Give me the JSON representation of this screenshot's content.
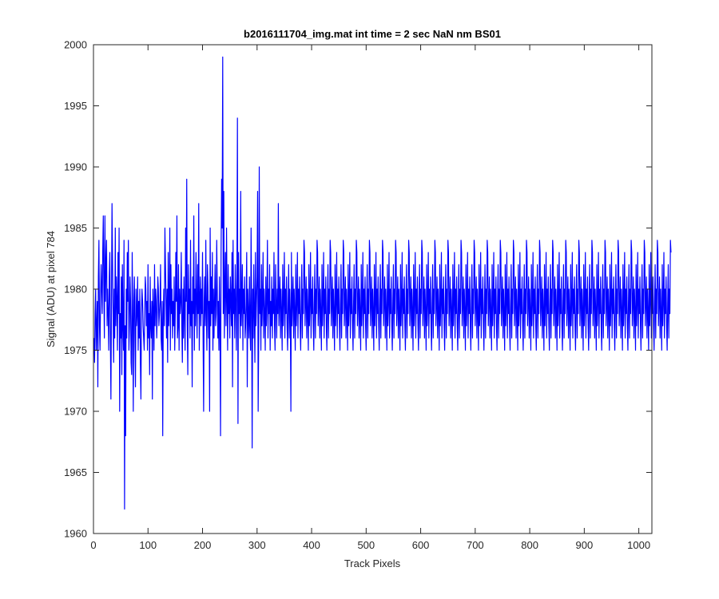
{
  "chart_data": {
    "type": "line",
    "title": "b2016111704_img.mat int time = 2 sec  NaN nm BS01",
    "xlabel": "Track Pixels",
    "ylabel": "Signal (ADU) at pixel 784",
    "xlim": [
      0,
      1024
    ],
    "ylim": [
      1960,
      2000
    ],
    "xticks": [
      "0",
      "100",
      "200",
      "300",
      "400",
      "500",
      "600",
      "700",
      "800",
      "900",
      "1000"
    ],
    "yticks": [
      "1960",
      "1965",
      "1970",
      "1975",
      "1980",
      "1985",
      "1990",
      "1995",
      "2000"
    ],
    "grid": false,
    "series": [
      {
        "color": "#0000ff",
        "x_start": 1,
        "x_step": 1,
        "y": [
          1976,
          1974,
          1978,
          1980,
          1975,
          1977,
          1979,
          1972,
          1981,
          1984,
          1977,
          1975,
          1979,
          1982,
          1980,
          1978,
          1983,
          1986,
          1980,
          1976,
          1986,
          1979,
          1982,
          1984,
          1977,
          1980,
          1978,
          1975,
          1981,
          1983,
          1976,
          1971,
          1979,
          1987,
          1982,
          1978,
          1974,
          1980,
          1976,
          1985,
          1977,
          1981,
          1979,
          1975,
          1983,
          1978,
          1985,
          1970,
          1978,
          1976,
          1981,
          1973,
          1982,
          1977,
          1975,
          1984,
          1962,
          1977,
          1968,
          1980,
          1976,
          1983,
          1979,
          1984,
          1975,
          1977,
          1981,
          1979,
          1974,
          1973,
          1983,
          1978,
          1970,
          1979,
          1981,
          1976,
          1972,
          1980,
          1977,
          1978,
          1981,
          1975,
          1979,
          1976,
          1980,
          1974,
          1971,
          1978,
          1980,
          1979,
          1977,
          1976,
          1975,
          1978,
          1981,
          1980,
          1977,
          1979,
          1975,
          1982,
          1976,
          1978,
          1973,
          1981,
          1977,
          1976,
          1979,
          1971,
          1980,
          1978,
          1975,
          1982,
          1977,
          1980,
          1979,
          1976,
          1978,
          1981,
          1980,
          1977,
          1978,
          1979,
          1982,
          1976,
          1975,
          1979,
          1968,
          1978,
          1980,
          1977,
          1985,
          1982,
          1979,
          1976,
          1980,
          1974,
          1983,
          1977,
          1979,
          1985,
          1975,
          1982,
          1978,
          1980,
          1976,
          1979,
          1977,
          1981,
          1975,
          1978,
          1983,
          1979,
          1986,
          1976,
          1977,
          1982,
          1975,
          1980,
          1978,
          1979,
          1983,
          1977,
          1974,
          1980,
          1976,
          1981,
          1978,
          1975,
          1985,
          1979,
          1989,
          1977,
          1973,
          1982,
          1978,
          1980,
          1976,
          1984,
          1977,
          1979,
          1972,
          1981,
          1978,
          1986,
          1975,
          1980,
          1977,
          1983,
          1979,
          1976,
          1982,
          1978,
          1987,
          1975,
          1979,
          1981,
          1977,
          1980,
          1978,
          1983,
          1976,
          1970,
          1979,
          1981,
          1977,
          1984,
          1978,
          1975,
          1982,
          1980,
          1976,
          1979,
          1970,
          1985,
          1977,
          1981,
          1978,
          1983,
          1975,
          1980,
          1976,
          1979,
          1982,
          1977,
          1978,
          1984,
          1980,
          1976,
          1979,
          1975,
          1981,
          1977,
          1968,
          1983,
          1989,
          1985,
          1999,
          1978,
          1988,
          1976,
          1980,
          1983,
          1977,
          1985,
          1979,
          1975,
          1982,
          1978,
          1980,
          1976,
          1981,
          1979,
          1977,
          1983,
          1972,
          1984,
          1978,
          1980,
          1976,
          1982,
          1979,
          1975,
          1981,
          1994,
          1969,
          1983,
          1978,
          1980,
          1976,
          1988,
          1977,
          1979,
          1982,
          1975,
          1980,
          1978,
          1981,
          1976,
          1977,
          1979,
          1983,
          1972,
          1980,
          1978,
          1976,
          1981,
          1977,
          1975,
          1985,
          1979,
          1967,
          1980,
          1976,
          1982,
          1978,
          1974,
          1983,
          1977,
          1979,
          1981,
          1988,
          1970,
          1976,
          1990,
          1978,
          1980,
          1975,
          1982,
          1977,
          1979,
          1983,
          1976,
          1980,
          1978,
          1975,
          1981,
          1977,
          1979,
          1984,
          1976,
          1980,
          1978,
          1982,
          1975,
          1979,
          1977,
          1981,
          1976,
          1980,
          1978,
          1983,
          1977,
          1975,
          1982,
          1979,
          1976,
          1980,
          1978,
          1987,
          1977,
          1979,
          1981,
          1976,
          1980,
          1978,
          1975,
          1982,
          1977,
          1979,
          1983,
          1976,
          1980,
          1978,
          1981,
          1977,
          1975,
          1979,
          1982,
          1976,
          1980,
          1978,
          1970,
          1983,
          1977,
          1979,
          1981,
          1976,
          1980,
          1978,
          1975,
          1982,
          1977,
          1979,
          1983,
          1976,
          1980,
          1978,
          1981,
          1977,
          1975,
          1979,
          1982,
          1976,
          1980,
          1978,
          1984,
          1983,
          1977,
          1979,
          1981,
          1976,
          1980,
          1978,
          1975,
          1982,
          1977,
          1979,
          1983,
          1976,
          1980,
          1978,
          1981,
          1977,
          1975,
          1979,
          1982,
          1976,
          1980,
          1978,
          1984,
          1983,
          1977,
          1979,
          1981,
          1976,
          1980,
          1978,
          1975,
          1982,
          1977,
          1979,
          1983,
          1976,
          1980,
          1978,
          1981,
          1977,
          1975,
          1979,
          1982,
          1976,
          1980,
          1978,
          1984,
          1983,
          1977,
          1979,
          1981,
          1976,
          1980,
          1978,
          1975,
          1982,
          1977,
          1979,
          1983,
          1976,
          1980,
          1978,
          1981,
          1977,
          1975,
          1979,
          1982,
          1976,
          1980,
          1978,
          1984,
          1983,
          1977,
          1979,
          1981,
          1976,
          1980,
          1978,
          1975,
          1982,
          1977,
          1979,
          1983,
          1976,
          1980,
          1978,
          1981,
          1977,
          1975,
          1979,
          1982,
          1976,
          1980,
          1978,
          1984,
          1983,
          1977,
          1979,
          1981,
          1976,
          1980,
          1978,
          1975,
          1982,
          1977,
          1979,
          1983,
          1976,
          1980,
          1978,
          1981,
          1977,
          1975,
          1979,
          1982,
          1976,
          1980,
          1978,
          1984,
          1983,
          1977,
          1979,
          1981,
          1976,
          1980,
          1978,
          1975,
          1982,
          1977,
          1979,
          1983,
          1976,
          1980,
          1978,
          1981,
          1977,
          1975,
          1979,
          1982,
          1976,
          1980,
          1978,
          1984,
          1983,
          1977,
          1979,
          1981,
          1976,
          1980,
          1978,
          1975,
          1982,
          1977,
          1979,
          1983,
          1976,
          1980,
          1978,
          1981,
          1977,
          1975,
          1979,
          1982,
          1976,
          1980,
          1978,
          1984,
          1983,
          1977,
          1979,
          1981,
          1976,
          1980,
          1978,
          1975,
          1982,
          1977,
          1979,
          1983,
          1976,
          1980,
          1978,
          1981,
          1977,
          1975,
          1979,
          1982,
          1976,
          1980,
          1978,
          1984,
          1983,
          1977,
          1979,
          1981,
          1976,
          1980,
          1978,
          1975,
          1982,
          1977,
          1979,
          1983,
          1976,
          1980,
          1978,
          1981,
          1977,
          1975,
          1979,
          1982,
          1976,
          1980,
          1978,
          1984,
          1983,
          1977,
          1979,
          1981,
          1976,
          1980,
          1978,
          1975,
          1982,
          1977,
          1979,
          1983,
          1976,
          1980,
          1978,
          1981,
          1977,
          1975,
          1979,
          1982,
          1976,
          1980,
          1978,
          1984,
          1983,
          1977,
          1979,
          1981,
          1976,
          1980,
          1978,
          1975,
          1982,
          1977,
          1979,
          1983,
          1976,
          1980,
          1978,
          1981,
          1977,
          1975,
          1979,
          1982,
          1976,
          1980,
          1978,
          1984,
          1983,
          1977,
          1979,
          1981,
          1976,
          1980,
          1978,
          1975,
          1982,
          1977,
          1979,
          1983,
          1976,
          1980,
          1978,
          1981,
          1977,
          1975,
          1979,
          1982,
          1976,
          1980,
          1978,
          1984,
          1983,
          1977,
          1979,
          1981,
          1976,
          1980,
          1978,
          1975,
          1982,
          1977,
          1979,
          1983,
          1976,
          1980,
          1978,
          1981,
          1977,
          1975,
          1979,
          1982,
          1976,
          1980,
          1978,
          1984,
          1983,
          1977,
          1979,
          1981,
          1976,
          1980,
          1978,
          1975,
          1982,
          1977,
          1979,
          1983,
          1976,
          1980,
          1978,
          1981,
          1977,
          1975,
          1979,
          1982,
          1976,
          1980,
          1978,
          1984,
          1983,
          1977,
          1979,
          1981,
          1976,
          1980,
          1978,
          1975,
          1982,
          1977,
          1979,
          1983,
          1976,
          1980,
          1978,
          1981,
          1977,
          1975,
          1979,
          1982,
          1976,
          1980,
          1978,
          1984,
          1983,
          1977,
          1979,
          1981,
          1976,
          1980,
          1978,
          1975,
          1982,
          1977,
          1979,
          1983,
          1976,
          1980,
          1978,
          1981,
          1977,
          1975,
          1979,
          1982,
          1976,
          1980,
          1978,
          1984,
          1983,
          1977,
          1979,
          1981,
          1976,
          1980,
          1978,
          1975,
          1982,
          1977,
          1979,
          1983,
          1976,
          1980,
          1978,
          1981,
          1977,
          1975,
          1979,
          1982,
          1976,
          1980,
          1978,
          1984,
          1983,
          1977,
          1979,
          1981,
          1976,
          1980,
          1978,
          1975,
          1982,
          1977,
          1979,
          1983,
          1976,
          1980,
          1978,
          1981,
          1977,
          1975,
          1979,
          1982,
          1976,
          1980,
          1978,
          1984,
          1983,
          1977,
          1979,
          1981,
          1976,
          1980,
          1978,
          1975,
          1982,
          1977,
          1979,
          1983,
          1976,
          1980,
          1978,
          1981,
          1977,
          1975,
          1979,
          1982,
          1976,
          1980,
          1978,
          1984,
          1983,
          1977,
          1979,
          1981,
          1976,
          1980,
          1978,
          1975,
          1982,
          1977,
          1979,
          1983,
          1976,
          1980,
          1978,
          1981,
          1977,
          1975,
          1979,
          1982,
          1976,
          1980,
          1978,
          1984,
          1983,
          1977,
          1979,
          1981,
          1976,
          1980,
          1978,
          1975,
          1982,
          1977,
          1979,
          1983,
          1976,
          1980,
          1978,
          1981,
          1977,
          1975,
          1979,
          1982,
          1976,
          1980,
          1978,
          1984,
          1983,
          1977,
          1979,
          1981,
          1976,
          1980,
          1978,
          1975,
          1982,
          1977,
          1979,
          1983,
          1976,
          1980,
          1978,
          1981,
          1977,
          1975,
          1979,
          1982,
          1976,
          1980,
          1978,
          1984,
          1983,
          1977,
          1979,
          1981,
          1976,
          1980,
          1978,
          1975,
          1982,
          1977,
          1979,
          1983,
          1976,
          1980,
          1978,
          1981,
          1977,
          1975,
          1979,
          1982,
          1976,
          1980,
          1978,
          1984,
          1983,
          1977,
          1979,
          1981,
          1976,
          1980,
          1978,
          1975,
          1982,
          1977,
          1979,
          1983,
          1976,
          1980,
          1978,
          1981,
          1977,
          1975,
          1979,
          1982,
          1976,
          1980,
          1978,
          1984,
          1983,
          1977,
          1979,
          1981,
          1976,
          1980,
          1978,
          1975,
          1982,
          1977,
          1979,
          1983,
          1976,
          1980,
          1978,
          1981,
          1977,
          1975,
          1979,
          1982,
          1976,
          1980,
          1978,
          1984,
          1983,
          1977,
          1979,
          1981,
          1976,
          1980,
          1978,
          1975,
          1982,
          1977,
          1979,
          1983,
          1976,
          1980,
          1978,
          1981,
          1977,
          1975,
          1979,
          1982,
          1976,
          1980,
          1978,
          1984,
          1983,
          1977,
          1979,
          1981,
          1976,
          1980,
          1978,
          1975,
          1982,
          1977,
          1979,
          1983,
          1976,
          1980,
          1978,
          1981,
          1977,
          1975,
          1979,
          1982,
          1976,
          1980,
          1978,
          1984,
          1983,
          1977,
          1979,
          1981,
          1976,
          1980,
          1978,
          1975,
          1982,
          1977,
          1979,
          1983,
          1976,
          1980,
          1978,
          1981,
          1977,
          1975,
          1979,
          1982,
          1976,
          1980,
          1978,
          1984,
          1983
        ]
      }
    ]
  }
}
